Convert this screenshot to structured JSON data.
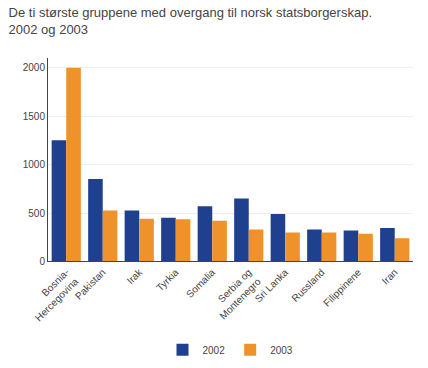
{
  "chart_data": {
    "type": "bar",
    "title": "De ti største gruppene med overgang til norsk statsborgerskap.\n2002 og 2003",
    "categories": [
      "Bosnia-\nHercegovina",
      "Pakistan",
      "Irak",
      "Tyrkia",
      "Somalia",
      "Serbia og\nMontenegro",
      "Sri Lanka",
      "Russland",
      "Filippinene",
      "Iran"
    ],
    "series": [
      {
        "name": "2002",
        "color": "#1f3f8f",
        "values": [
          1250,
          850,
          525,
          450,
          570,
          650,
          490,
          330,
          320,
          345
        ]
      },
      {
        "name": "2003",
        "color": "#f0922a",
        "values": [
          2000,
          525,
          440,
          435,
          420,
          330,
          300,
          300,
          285,
          240
        ]
      }
    ],
    "ylim": [
      0,
      2100
    ],
    "yticks": [
      0,
      500,
      1000,
      1500,
      2000
    ],
    "grid": true,
    "legend": "bottom"
  }
}
